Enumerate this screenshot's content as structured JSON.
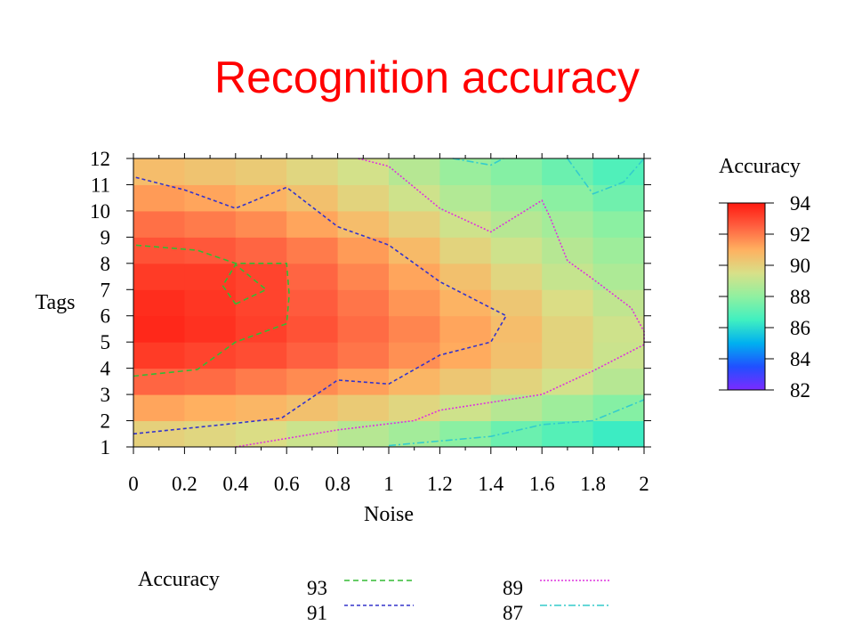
{
  "slide": {
    "title": "Recognition accuracy"
  },
  "chart_data": {
    "type": "heatmap",
    "title": "",
    "xlabel": "Noise",
    "ylabel": "Tags",
    "x_ticks": [
      "0",
      "0.2",
      "0.4",
      "0.6",
      "0.8",
      "1",
      "1.2",
      "1.4",
      "1.6",
      "1.8",
      "2"
    ],
    "y_ticks": [
      "1",
      "2",
      "3",
      "4",
      "5",
      "6",
      "7",
      "8",
      "9",
      "10",
      "11",
      "12"
    ],
    "xlim": [
      0,
      2
    ],
    "ylim": [
      1,
      12
    ],
    "grid": false,
    "x_bins": [
      0,
      0.2,
      0.4,
      0.6,
      0.8,
      1.0,
      1.2,
      1.4,
      1.6,
      1.8
    ],
    "y_bins": [
      1,
      2,
      3,
      4,
      5,
      6,
      7,
      8,
      9,
      10,
      11
    ],
    "z_values": [
      [
        90.0,
        89.8,
        89.6,
        89.2,
        88.8,
        88.4,
        87.9,
        87.3,
        86.9,
        86.4
      ],
      [
        91.2,
        91.0,
        90.8,
        90.5,
        90.2,
        89.8,
        89.3,
        88.8,
        88.3,
        87.8
      ],
      [
        92.4,
        92.3,
        92.0,
        91.7,
        91.3,
        90.8,
        90.3,
        89.9,
        89.4,
        88.8
      ],
      [
        93.3,
        93.1,
        92.9,
        92.5,
        92.1,
        91.6,
        91.1,
        90.5,
        89.9,
        89.2
      ],
      [
        93.7,
        93.5,
        93.2,
        92.8,
        92.3,
        91.8,
        91.2,
        90.6,
        89.9,
        89.3
      ],
      [
        93.6,
        93.4,
        93.1,
        92.6,
        92.1,
        91.5,
        90.9,
        90.3,
        89.6,
        89.0
      ],
      [
        93.3,
        93.3,
        93.1,
        92.4,
        91.8,
        91.2,
        90.5,
        89.8,
        89.1,
        88.6
      ],
      [
        92.8,
        92.7,
        92.4,
        92.0,
        91.4,
        90.7,
        89.9,
        89.3,
        88.8,
        88.3
      ],
      [
        92.2,
        92.0,
        91.7,
        91.2,
        90.6,
        90.0,
        89.3,
        88.8,
        88.4,
        87.9
      ],
      [
        91.4,
        91.2,
        90.9,
        90.5,
        89.9,
        89.3,
        88.7,
        88.3,
        87.9,
        87.4
      ],
      [
        90.6,
        90.4,
        90.2,
        89.8,
        89.4,
        88.8,
        88.2,
        87.8,
        87.3,
        86.8
      ]
    ],
    "colorbar": {
      "title": "Accuracy",
      "ticks": [
        "94",
        "92",
        "90",
        "88",
        "86",
        "84",
        "82"
      ],
      "range": [
        82,
        94
      ],
      "colors": [
        "#7b2bff",
        "#2050ff",
        "#00b0f0",
        "#40f0c0",
        "#90f0a0",
        "#d8e088",
        "#ffb060",
        "#ff6040",
        "#ff1a10"
      ]
    },
    "contours": [
      {
        "level": "93",
        "color": "#33bb33",
        "dash": "6,4",
        "points": [
          [
            0,
            3.7
          ],
          [
            0.25,
            3.95
          ],
          [
            0.4,
            5.0
          ],
          [
            0.6,
            5.7
          ],
          [
            0.61,
            6.8
          ],
          [
            0.6,
            8.0
          ],
          [
            0.4,
            8.0
          ],
          [
            0.25,
            8.5
          ],
          [
            0,
            8.7
          ]
        ],
        "island": [
          [
            0.4,
            6.45
          ],
          [
            0.52,
            7.0
          ],
          [
            0.4,
            7.95
          ],
          [
            0.35,
            7.15
          ],
          [
            0.4,
            6.45
          ]
        ]
      },
      {
        "level": "91",
        "color": "#3333cc",
        "dash": "4,3",
        "points": [
          [
            0,
            1.5
          ],
          [
            0.35,
            1.85
          ],
          [
            0.58,
            2.1
          ],
          [
            0.8,
            3.55
          ],
          [
            1.0,
            3.4
          ],
          [
            1.2,
            4.5
          ],
          [
            1.4,
            5.0
          ],
          [
            1.46,
            6.0
          ],
          [
            1.2,
            7.3
          ],
          [
            1.0,
            8.7
          ],
          [
            0.8,
            9.4
          ],
          [
            0.6,
            10.9
          ],
          [
            0.4,
            10.1
          ],
          [
            0.2,
            10.8
          ],
          [
            0,
            11.3
          ]
        ]
      },
      {
        "level": "89",
        "color": "#dd33dd",
        "dash": "2,2",
        "points": [
          [
            0.4,
            1.0
          ],
          [
            0.8,
            1.65
          ],
          [
            1.1,
            2.0
          ],
          [
            1.2,
            2.4
          ],
          [
            1.6,
            3.0
          ],
          [
            1.8,
            3.9
          ],
          [
            2.0,
            4.9
          ],
          [
            2.0,
            5.4
          ],
          [
            1.95,
            6.3
          ],
          [
            1.8,
            7.4
          ],
          [
            1.7,
            8.1
          ],
          [
            1.63,
            9.8
          ],
          [
            1.6,
            10.4
          ],
          [
            1.4,
            9.2
          ],
          [
            1.2,
            10.1
          ],
          [
            1.0,
            11.7
          ],
          [
            0.88,
            12.0
          ]
        ]
      },
      {
        "level": "87",
        "color": "#33cccc",
        "dash": "8,3,2,3",
        "points": [
          [
            1.0,
            1.05
          ],
          [
            1.4,
            1.4
          ],
          [
            1.6,
            1.85
          ],
          [
            1.8,
            2.0
          ],
          [
            2.0,
            2.8
          ]
        ],
        "segments": [
          [
            [
              1.25,
              12.0
            ],
            [
              1.4,
              11.75
            ],
            [
              1.45,
              12.0
            ]
          ],
          [
            [
              1.7,
              12.0
            ],
            [
              1.8,
              10.65
            ],
            [
              1.92,
              11.1
            ],
            [
              2.0,
              12.0
            ]
          ]
        ]
      }
    ],
    "contour_legend": {
      "title": "Accuracy",
      "entries": [
        "93",
        "91",
        "89",
        "87"
      ]
    }
  }
}
